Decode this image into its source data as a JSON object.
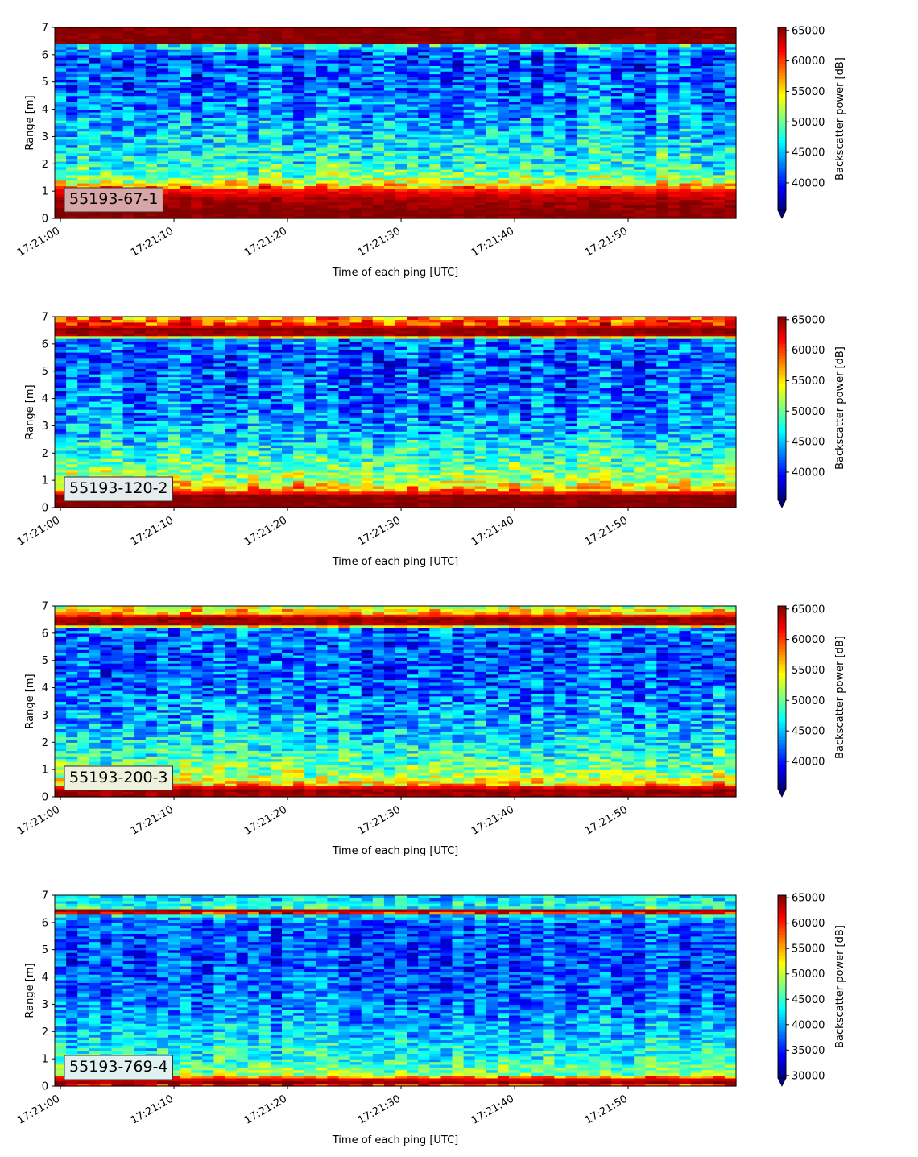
{
  "chart_data": [
    {
      "type": "heatmap",
      "label": "55193-67-1",
      "label_box_color": "#d8a6a6",
      "xlabel": "Time of each ping [UTC]",
      "ylabel": "Range [m]",
      "colorbar_label": "Backscatter power [dB]",
      "x_range": [
        "17:20:59.5",
        "17:21:59.5"
      ],
      "x_ticks": [
        "17:21:00",
        "17:21:10",
        "17:21:20",
        "17:21:30",
        "17:21:40",
        "17:21:50"
      ],
      "ylim": [
        0,
        7
      ],
      "y_ticks": [
        0,
        1,
        2,
        3,
        4,
        5,
        6,
        7
      ],
      "color_range": [
        35500,
        65500
      ],
      "colorbar_ticks": [
        40000,
        45000,
        50000,
        55000,
        60000,
        65000
      ],
      "colormap": "jet",
      "colorbar_extend": "min",
      "profile": [
        {
          "range_m": 0.0,
          "backscatter": 65500
        },
        {
          "range_m": 0.25,
          "backscatter": 65500
        },
        {
          "range_m": 0.75,
          "backscatter": 64000
        },
        {
          "range_m": 1.05,
          "backscatter": 61000
        },
        {
          "range_m": 1.25,
          "backscatter": 55000
        },
        {
          "range_m": 1.5,
          "backscatter": 50500
        },
        {
          "range_m": 2.0,
          "backscatter": 48000
        },
        {
          "range_m": 3.0,
          "backscatter": 45500
        },
        {
          "range_m": 4.0,
          "backscatter": 43500
        },
        {
          "range_m": 5.0,
          "backscatter": 42000
        },
        {
          "range_m": 6.0,
          "backscatter": 41500
        },
        {
          "range_m": 6.35,
          "backscatter": 47000
        },
        {
          "range_m": 6.45,
          "backscatter": 65500
        },
        {
          "range_m": 7.0,
          "backscatter": 65500
        }
      ]
    },
    {
      "type": "heatmap",
      "label": "55193-120-2",
      "label_box_color": "#e6ecec",
      "xlabel": "Time of each ping [UTC]",
      "ylabel": "Range [m]",
      "colorbar_label": "Backscatter power [dB]",
      "x_range": [
        "17:20:59.5",
        "17:21:59.5"
      ],
      "x_ticks": [
        "17:21:00",
        "17:21:10",
        "17:21:20",
        "17:21:30",
        "17:21:40",
        "17:21:50"
      ],
      "ylim": [
        0,
        7
      ],
      "y_ticks": [
        0,
        1,
        2,
        3,
        4,
        5,
        6,
        7
      ],
      "color_range": [
        35500,
        65500
      ],
      "colorbar_ticks": [
        40000,
        45000,
        50000,
        55000,
        60000,
        65000
      ],
      "colormap": "jet",
      "colorbar_extend": "min",
      "profile": [
        {
          "range_m": 0.0,
          "backscatter": 65500
        },
        {
          "range_m": 0.45,
          "backscatter": 65500
        },
        {
          "range_m": 0.65,
          "backscatter": 57000
        },
        {
          "range_m": 1.0,
          "backscatter": 52000
        },
        {
          "range_m": 2.0,
          "backscatter": 47500
        },
        {
          "range_m": 3.0,
          "backscatter": 44000
        },
        {
          "range_m": 4.0,
          "backscatter": 42500
        },
        {
          "range_m": 5.5,
          "backscatter": 41500
        },
        {
          "range_m": 6.2,
          "backscatter": 43000
        },
        {
          "range_m": 6.3,
          "backscatter": 64000
        },
        {
          "range_m": 6.55,
          "backscatter": 65500
        },
        {
          "range_m": 6.75,
          "backscatter": 60000
        },
        {
          "range_m": 7.0,
          "backscatter": 57000
        }
      ]
    },
    {
      "type": "heatmap",
      "label": "55193-200-3",
      "label_box_color": "#eef2dc",
      "xlabel": "Time of each ping [UTC]",
      "ylabel": "Range [m]",
      "colorbar_label": "Backscatter power [dB]",
      "x_range": [
        "17:20:59.5",
        "17:21:59.5"
      ],
      "x_ticks": [
        "17:21:00",
        "17:21:10",
        "17:21:20",
        "17:21:30",
        "17:21:40",
        "17:21:50"
      ],
      "ylim": [
        0,
        7
      ],
      "y_ticks": [
        0,
        1,
        2,
        3,
        4,
        5,
        6,
        7
      ],
      "color_range": [
        35500,
        65500
      ],
      "colorbar_ticks": [
        40000,
        45000,
        50000,
        55000,
        60000,
        65000
      ],
      "colormap": "jet",
      "colorbar_extend": "min",
      "profile": [
        {
          "range_m": 0.0,
          "backscatter": 64000
        },
        {
          "range_m": 0.3,
          "backscatter": 65500
        },
        {
          "range_m": 0.45,
          "backscatter": 56000
        },
        {
          "range_m": 0.8,
          "backscatter": 51500
        },
        {
          "range_m": 1.5,
          "backscatter": 48500
        },
        {
          "range_m": 2.5,
          "backscatter": 45000
        },
        {
          "range_m": 4.0,
          "backscatter": 42500
        },
        {
          "range_m": 5.5,
          "backscatter": 41500
        },
        {
          "range_m": 6.2,
          "backscatter": 43000
        },
        {
          "range_m": 6.3,
          "backscatter": 64000
        },
        {
          "range_m": 6.55,
          "backscatter": 65000
        },
        {
          "range_m": 6.75,
          "backscatter": 57000
        },
        {
          "range_m": 7.0,
          "backscatter": 52000
        }
      ]
    },
    {
      "type": "heatmap",
      "label": "55193-769-4",
      "label_box_color": "#e0f2f0",
      "xlabel": "Time of each ping [UTC]",
      "ylabel": "Range [m]",
      "colorbar_label": "Backscatter power [dB]",
      "x_range": [
        "17:20:59.5",
        "17:21:59.5"
      ],
      "x_ticks": [
        "17:21:00",
        "17:21:10",
        "17:21:20",
        "17:21:30",
        "17:21:40",
        "17:21:50"
      ],
      "ylim": [
        0,
        7
      ],
      "y_ticks": [
        0,
        1,
        2,
        3,
        4,
        5,
        6,
        7
      ],
      "color_range": [
        29500,
        65500
      ],
      "colorbar_ticks": [
        30000,
        35000,
        40000,
        45000,
        50000,
        55000,
        60000,
        65000
      ],
      "colormap": "jet",
      "colorbar_extend": "min",
      "profile": [
        {
          "range_m": 0.0,
          "backscatter": 54000
        },
        {
          "range_m": 0.1,
          "backscatter": 65500
        },
        {
          "range_m": 0.3,
          "backscatter": 61000
        },
        {
          "range_m": 0.45,
          "backscatter": 48000
        },
        {
          "range_m": 1.0,
          "backscatter": 44000
        },
        {
          "range_m": 2.0,
          "backscatter": 41000
        },
        {
          "range_m": 3.0,
          "backscatter": 38000
        },
        {
          "range_m": 4.5,
          "backscatter": 36500
        },
        {
          "range_m": 6.0,
          "backscatter": 37000
        },
        {
          "range_m": 6.25,
          "backscatter": 42000
        },
        {
          "range_m": 6.35,
          "backscatter": 60000
        },
        {
          "range_m": 6.45,
          "backscatter": 64000
        },
        {
          "range_m": 6.55,
          "backscatter": 44000
        },
        {
          "range_m": 7.0,
          "backscatter": 41500
        }
      ]
    }
  ]
}
